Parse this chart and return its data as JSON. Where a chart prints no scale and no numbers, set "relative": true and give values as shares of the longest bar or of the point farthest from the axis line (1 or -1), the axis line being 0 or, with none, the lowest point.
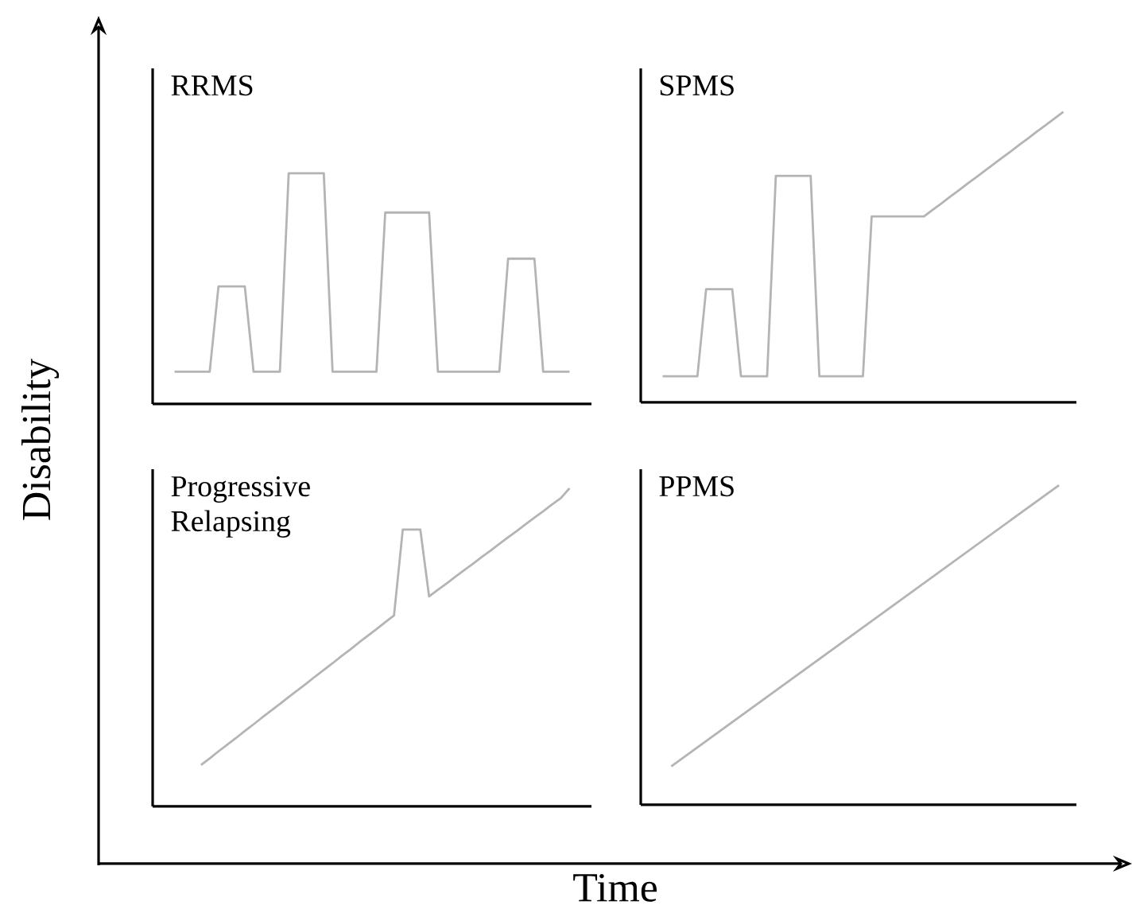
{
  "chart_data": [
    {
      "type": "line",
      "title": "RRMS",
      "relative": true,
      "tick_labels": false,
      "color": "#b4b4b4",
      "categories": [
        null,
        null,
        null,
        null,
        null,
        null,
        null,
        null,
        null,
        null,
        null,
        null,
        null,
        null,
        null,
        null,
        null,
        null,
        null,
        null,
        null,
        null,
        null,
        null,
        null,
        null,
        null,
        null,
        null,
        null,
        null,
        null,
        null,
        null,
        null,
        null,
        null,
        null,
        null,
        null,
        null,
        null,
        null,
        null,
        null,
        null
      ],
      "values": [
        0.14,
        0.14,
        0.14,
        0.14,
        0.14,
        0.51,
        0.51,
        0.51,
        0.51,
        0.14,
        0.14,
        0.14,
        0.14,
        1,
        1,
        1,
        1,
        1,
        0.14,
        0.14,
        0.14,
        0.14,
        0.14,
        0.14,
        0.83,
        0.83,
        0.83,
        0.83,
        0.83,
        0.83,
        0.14,
        0.14,
        0.14,
        0.14,
        0.14,
        0.14,
        0.14,
        0.14,
        0.63,
        0.63,
        0.63,
        0.63,
        0.14,
        0.14,
        0.14,
        0.14
      ]
    },
    {
      "type": "line",
      "title": "SPMS",
      "relative": true,
      "tick_labels": false,
      "color": "#b4b4b4",
      "categories": [
        null,
        null,
        null,
        null,
        null,
        null,
        null,
        null,
        null,
        null,
        null,
        null,
        null,
        null,
        null,
        null,
        null,
        null,
        null,
        null,
        null,
        null,
        null,
        null,
        null,
        null,
        null,
        null,
        null,
        null,
        null,
        null,
        null,
        null,
        null,
        null,
        null,
        null,
        null,
        null,
        null,
        null,
        null,
        null,
        null,
        null,
        null
      ],
      "values": [
        0.09,
        0.09,
        0.09,
        0.09,
        0.09,
        0.39,
        0.39,
        0.39,
        0.39,
        0.09,
        0.09,
        0.09,
        0.09,
        0.78,
        0.78,
        0.78,
        0.78,
        0.78,
        0.09,
        0.09,
        0.09,
        0.09,
        0.09,
        0.09,
        0.64,
        0.64,
        0.64,
        0.64,
        0.64,
        0.64,
        0.64,
        0.663,
        0.685,
        0.708,
        0.73,
        0.753,
        0.775,
        0.798,
        0.82,
        0.843,
        0.865,
        0.888,
        0.91,
        0.933,
        0.955,
        0.978,
        1
      ]
    },
    {
      "type": "line",
      "title": "Progressive Relapsing",
      "relative": true,
      "tick_labels": false,
      "color": "#b4b4b4",
      "categories": [
        null,
        null,
        null,
        null,
        null,
        null,
        null,
        null,
        null,
        null,
        null,
        null,
        null,
        null,
        null,
        null,
        null,
        null,
        null,
        null,
        null,
        null,
        null,
        null,
        null,
        null,
        null,
        null,
        null,
        null,
        null,
        null,
        null,
        null,
        null,
        null,
        null,
        null,
        null,
        null,
        null,
        null,
        null
      ],
      "values": [
        0.13,
        0.151,
        0.173,
        0.194,
        0.215,
        0.237,
        0.258,
        0.28,
        0.301,
        0.322,
        0.344,
        0.365,
        0.386,
        0.408,
        0.429,
        0.45,
        0.472,
        0.493,
        0.515,
        0.536,
        0.557,
        0.579,
        0.6,
        0.87,
        0.87,
        0.87,
        0.66,
        0.681,
        0.701,
        0.722,
        0.743,
        0.763,
        0.784,
        0.804,
        0.825,
        0.846,
        0.866,
        0.887,
        0.908,
        0.928,
        0.949,
        0.969,
        1
      ]
    },
    {
      "type": "line",
      "title": "PPMS",
      "relative": true,
      "tick_labels": false,
      "color": "#b4b4b4",
      "categories": [
        null,
        null
      ],
      "values": [
        0.12,
        1
      ]
    },
    {
      "type": "other",
      "xlabel": "Time",
      "ylabel": "Disability"
    }
  ]
}
